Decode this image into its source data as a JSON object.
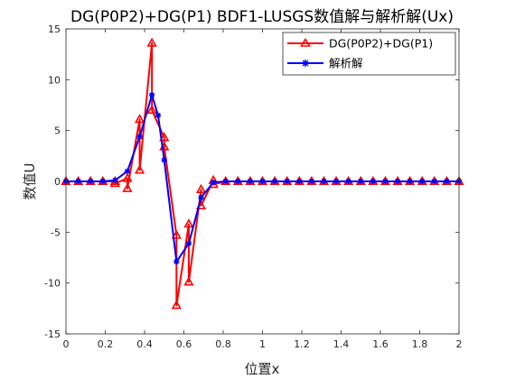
{
  "chart_data": {
    "type": "line",
    "title": "DG(P0P2)+DG(P1) BDF1-LUSGS数值解与解析解(Ux)",
    "xlabel": "位置x",
    "ylabel": "数值U",
    "xlim": [
      0,
      2
    ],
    "ylim": [
      -15,
      15
    ],
    "xticks": [
      0,
      0.2,
      0.4,
      0.6,
      0.8,
      1,
      1.2,
      1.4,
      1.6,
      1.8,
      2
    ],
    "xtick_labels": [
      "0",
      "0.2",
      "0.4",
      "0.6",
      "0.8",
      "1",
      "1.2",
      "1.4",
      "1.6",
      "1.8",
      "2"
    ],
    "yticks": [
      15,
      10,
      5,
      0,
      -5,
      -10,
      -15
    ],
    "ytick_labels": [
      "15",
      "10",
      "5",
      "0",
      "-5",
      "-10",
      "-15"
    ],
    "grid": false,
    "legend_position": "top-right",
    "series": [
      {
        "name": "DG(P0P2)+DG(P1)",
        "color": "#ff0000",
        "marker": "triangle",
        "points": [
          [
            0.0,
            0
          ],
          [
            0.0625,
            0
          ],
          [
            0.125,
            0
          ],
          [
            0.1875,
            0
          ],
          [
            0.25,
            0
          ],
          [
            0.25,
            -0.2
          ],
          [
            0.3125,
            0.3
          ],
          [
            0.3125,
            -0.7
          ],
          [
            0.375,
            6.1
          ],
          [
            0.375,
            1.1
          ],
          [
            0.4375,
            13.6
          ],
          [
            0.4375,
            7.0
          ],
          [
            0.5,
            4.3
          ],
          [
            0.5,
            3.4
          ],
          [
            0.5625,
            -5.3
          ],
          [
            0.5625,
            -12.2
          ],
          [
            0.625,
            -4.2
          ],
          [
            0.625,
            -9.9
          ],
          [
            0.6875,
            -0.8
          ],
          [
            0.6875,
            -2.4
          ],
          [
            0.75,
            0.1
          ],
          [
            0.75,
            -0.3
          ],
          [
            0.8125,
            0
          ],
          [
            0.875,
            0
          ],
          [
            0.9375,
            0
          ],
          [
            1.0,
            0
          ],
          [
            1.0625,
            0
          ],
          [
            1.125,
            0
          ],
          [
            1.1875,
            0
          ],
          [
            1.25,
            0
          ],
          [
            1.3125,
            0
          ],
          [
            1.375,
            0
          ],
          [
            1.4375,
            0
          ],
          [
            1.5,
            0
          ],
          [
            1.5625,
            0
          ],
          [
            1.625,
            0
          ],
          [
            1.6875,
            0
          ],
          [
            1.75,
            0
          ],
          [
            1.8125,
            0
          ],
          [
            1.875,
            0
          ],
          [
            1.9375,
            0
          ],
          [
            2.0,
            0
          ]
        ]
      },
      {
        "name": "解析解",
        "color": "#0000ff",
        "marker": "asterisk",
        "points": [
          [
            0.0,
            0
          ],
          [
            0.0625,
            0
          ],
          [
            0.125,
            0
          ],
          [
            0.1875,
            0
          ],
          [
            0.25,
            0.1
          ],
          [
            0.3125,
            1.0
          ],
          [
            0.375,
            4.4
          ],
          [
            0.4375,
            8.5
          ],
          [
            0.46875,
            6.5
          ],
          [
            0.5,
            2.1
          ],
          [
            0.5625,
            -7.9
          ],
          [
            0.625,
            -6.1
          ],
          [
            0.6875,
            -1.6
          ],
          [
            0.75,
            -0.1
          ],
          [
            0.8125,
            0
          ],
          [
            0.875,
            0
          ],
          [
            0.9375,
            0
          ],
          [
            1.0,
            0
          ],
          [
            1.0625,
            0
          ],
          [
            1.125,
            0
          ],
          [
            1.1875,
            0
          ],
          [
            1.25,
            0
          ],
          [
            1.3125,
            0
          ],
          [
            1.375,
            0
          ],
          [
            1.4375,
            0
          ],
          [
            1.5,
            0
          ],
          [
            1.5625,
            0
          ],
          [
            1.625,
            0
          ],
          [
            1.6875,
            0
          ],
          [
            1.75,
            0
          ],
          [
            1.8125,
            0
          ],
          [
            1.875,
            0
          ],
          [
            1.9375,
            0
          ],
          [
            2.0,
            0
          ]
        ]
      }
    ]
  }
}
